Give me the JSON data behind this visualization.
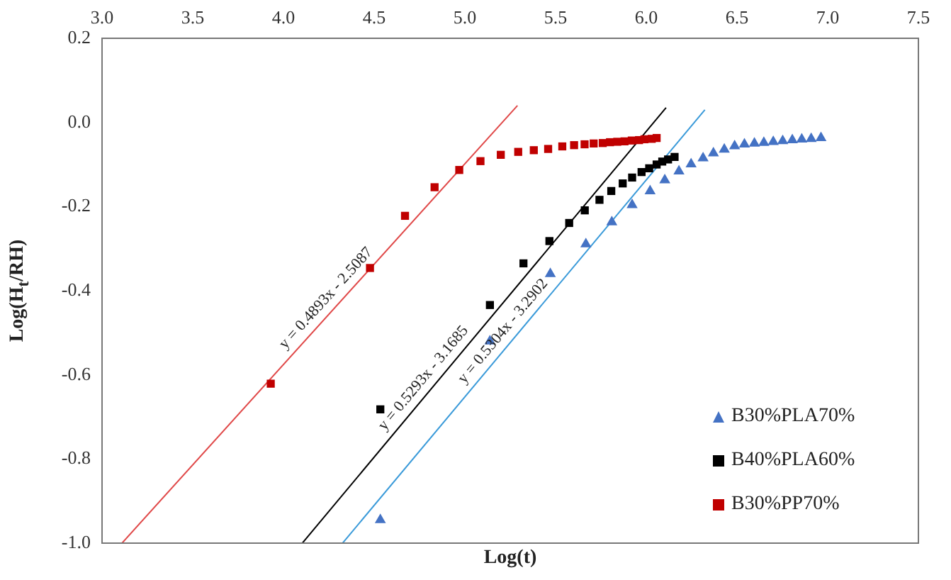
{
  "chart_data": {
    "type": "scatter",
    "xlabel": "Log(t)",
    "ylabel": "Log(H$_{t}$/RH)",
    "xlim": [
      3.0,
      7.5
    ],
    "xticks": [
      {
        "value": 3.0,
        "label": "3.0"
      },
      {
        "value": 3.5,
        "label": "3.5"
      },
      {
        "value": 4.0,
        "label": "4.0"
      },
      {
        "value": 4.5,
        "label": "4.5"
      },
      {
        "value": 5.0,
        "label": "5.0"
      },
      {
        "value": 5.5,
        "label": "5.5"
      },
      {
        "value": 6.0,
        "label": "6.0"
      },
      {
        "value": 6.5,
        "label": "6.5"
      },
      {
        "value": 7.0,
        "label": "7.0"
      },
      {
        "value": 7.5,
        "label": "7.5"
      }
    ],
    "ylim": [
      -1.0,
      0.2
    ],
    "yticks": [
      {
        "value": -1.0,
        "label": "-1.0"
      },
      {
        "value": -0.8,
        "label": "-0.8"
      },
      {
        "value": -0.6,
        "label": "-0.6"
      },
      {
        "value": -0.4,
        "label": "-0.4"
      },
      {
        "value": -0.2,
        "label": "-0.2"
      },
      {
        "value": 0.0,
        "label": "0.0"
      },
      {
        "value": 0.2,
        "label": "0.2"
      }
    ],
    "grid": false,
    "legend": "bottom right",
    "tick_labels": "xy",
    "series": [
      {
        "name": "B30%PLA70%",
        "color": "#4472c4",
        "marker": "triangle",
        "x": [
          4.534,
          5.138,
          5.471,
          5.667,
          5.81,
          5.922,
          6.021,
          6.102,
          6.18,
          6.247,
          6.313,
          6.37,
          6.43,
          6.487,
          6.541,
          6.596,
          6.648,
          6.7,
          6.752,
          6.805,
          6.857,
          6.909,
          6.963
        ],
        "values": [
          -0.945,
          -0.52,
          -0.36,
          -0.289,
          -0.237,
          -0.196,
          -0.163,
          -0.137,
          -0.116,
          -0.099,
          -0.085,
          -0.073,
          -0.064,
          -0.056,
          -0.052,
          -0.05,
          -0.048,
          -0.046,
          -0.044,
          -0.042,
          -0.04,
          -0.039,
          -0.037
        ]
      },
      {
        "name": "B40%PLA60%",
        "color": "#000000",
        "marker": "square",
        "x": [
          4.534,
          5.138,
          5.323,
          5.466,
          5.575,
          5.661,
          5.742,
          5.807,
          5.87,
          5.922,
          5.974,
          6.016,
          6.057,
          6.088,
          6.12,
          6.156
        ],
        "values": [
          -0.682,
          -0.434,
          -0.335,
          -0.282,
          -0.239,
          -0.209,
          -0.184,
          -0.163,
          -0.145,
          -0.131,
          -0.118,
          -0.109,
          -0.1,
          -0.093,
          -0.088,
          -0.082
        ]
      },
      {
        "name": "B30%PP70%",
        "color": "#c00000",
        "marker": "square",
        "x": [
          3.93,
          4.477,
          4.67,
          4.833,
          4.969,
          5.086,
          5.198,
          5.294,
          5.38,
          5.459,
          5.537,
          5.602,
          5.66,
          5.71,
          5.76,
          5.8,
          5.84,
          5.88,
          5.92,
          5.96,
          5.99,
          6.03,
          6.057
        ],
        "values": [
          -0.621,
          -0.346,
          -0.222,
          -0.154,
          -0.113,
          -0.092,
          -0.077,
          -0.07,
          -0.066,
          -0.063,
          -0.057,
          -0.054,
          -0.052,
          -0.05,
          -0.049,
          -0.047,
          -0.046,
          -0.045,
          -0.043,
          -0.042,
          -0.04,
          -0.039,
          -0.037
        ]
      },
      {
        "type": "line",
        "color": "#e04848",
        "marker": "none",
        "x": [
          3.11,
          5.29
        ],
        "values": [
          -1.0,
          0.04
        ]
      },
      {
        "type": "line",
        "color": "#000000",
        "marker": "none",
        "x": [
          4.104,
          6.109
        ],
        "values": [
          -1.0,
          0.035
        ]
      },
      {
        "type": "line",
        "color": "#3a9ad9",
        "marker": "none",
        "x": [
          4.326,
          6.323
        ],
        "values": [
          -1.0,
          0.03
        ]
      }
    ],
    "annotations": [
      "y = 0.4893x - 2.5087",
      "y = 0.5293x - 3.1685",
      "y = 0.5304x - 3.2902"
    ]
  }
}
